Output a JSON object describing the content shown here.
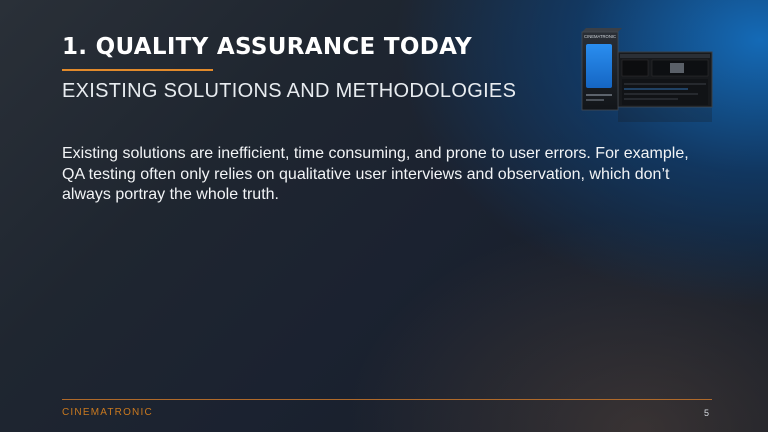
{
  "slide": {
    "title": "1. QUALITY ASSURANCE TODAY",
    "subtitle": "EXISTING SOLUTIONS AND METHODOLOGIES",
    "body": "Existing solutions are inefficient, time consuming, and prone to user errors. For example, QA testing often only relies on qualitative user interviews and observation, which don’t always portray the whole truth.",
    "page_number": "5"
  },
  "product_image": {
    "box_label": "CINEMATRONIC"
  },
  "footer": {
    "logo_text": "CINEMATRONIC"
  },
  "colors": {
    "accent": "#e28a2b",
    "background": "#1b2230",
    "highlight": "#1f7fd0"
  }
}
